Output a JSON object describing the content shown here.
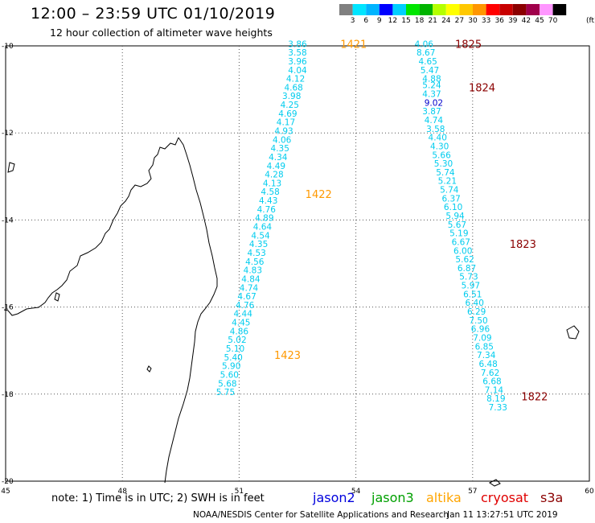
{
  "title": "12:00 – 23:59 UTC 01/10/2019",
  "subtitle": "12 hour collection of altimeter wave heights",
  "colorbar": {
    "unit": "(ft)",
    "labels": [
      "3",
      "6",
      "9",
      "12",
      "15",
      "18",
      "21",
      "24",
      "27",
      "30",
      "33",
      "36",
      "39",
      "42",
      "45",
      "70"
    ],
    "colors": [
      "#808080",
      "#00e5ff",
      "#00b4ff",
      "#0000ff",
      "#00cfff",
      "#00e600",
      "#00b400",
      "#b4ff00",
      "#ffff00",
      "#ffc800",
      "#ff9600",
      "#ff0000",
      "#c80000",
      "#8b0000",
      "#a0004b",
      "#ff96ff",
      "#000000"
    ]
  },
  "axes": {
    "lat_labels": [
      "-10",
      "-12",
      "-14",
      "-16",
      "-18",
      "-20"
    ],
    "lon_labels": [
      "45",
      "48",
      "51",
      "54",
      "57",
      "60"
    ]
  },
  "note": "note:  1) Time is in UTC;  2) SWH is in feet",
  "satellites": [
    {
      "name": "jason2",
      "color": "#0000dd"
    },
    {
      "name": "jason3",
      "color": "#00a000"
    },
    {
      "name": "altika",
      "color": "#ffa500"
    },
    {
      "name": "cryosat",
      "color": "#e00000"
    },
    {
      "name": "s3a",
      "color": "#8b0000"
    }
  ],
  "credit": "NOAA/NESDIS Center for Satellite Applications and Research",
  "timestamp": "Jan 11 13:27:51 UTC 2019",
  "chart_data": {
    "type": "scatter",
    "xlim": [
      45,
      60
    ],
    "ylim": [
      -20,
      -10
    ],
    "tracks": [
      {
        "satellite": "altika",
        "color": "#00ccee",
        "time_labels": [
          {
            "text": "1421",
            "lon": 53.6,
            "lat": -9.95,
            "color": "#ff9900"
          },
          {
            "text": "1422",
            "lon": 52.7,
            "lat": -13.4,
            "color": "#ff9900"
          },
          {
            "text": "1423",
            "lon": 51.9,
            "lat": -17.1,
            "color": "#ff9900"
          }
        ],
        "points": [
          {
            "lon": 52.5,
            "lat": -9.95,
            "v": "3.86"
          },
          {
            "lon": 52.5,
            "lat": -10.15,
            "v": "3.58"
          },
          {
            "lon": 52.5,
            "lat": -10.35,
            "v": "3.96"
          },
          {
            "lon": 52.5,
            "lat": -10.55,
            "v": "4.04"
          },
          {
            "lon": 52.45,
            "lat": -10.75,
            "v": "4.12"
          },
          {
            "lon": 52.4,
            "lat": -10.95,
            "v": "4.68"
          },
          {
            "lon": 52.35,
            "lat": -11.15,
            "v": "3.98"
          },
          {
            "lon": 52.3,
            "lat": -11.35,
            "v": "4.25"
          },
          {
            "lon": 52.25,
            "lat": -11.55,
            "v": "4.69"
          },
          {
            "lon": 52.2,
            "lat": -11.75,
            "v": "4.17"
          },
          {
            "lon": 52.15,
            "lat": -11.95,
            "v": "4.93"
          },
          {
            "lon": 52.1,
            "lat": -12.15,
            "v": "4.06"
          },
          {
            "lon": 52.05,
            "lat": -12.35,
            "v": "4.35"
          },
          {
            "lon": 52.0,
            "lat": -12.55,
            "v": "4.34"
          },
          {
            "lon": 51.95,
            "lat": -12.75,
            "v": "4.49"
          },
          {
            "lon": 51.9,
            "lat": -12.95,
            "v": "4.28"
          },
          {
            "lon": 51.85,
            "lat": -13.15,
            "v": "4.13"
          },
          {
            "lon": 51.8,
            "lat": -13.35,
            "v": "4.58"
          },
          {
            "lon": 51.75,
            "lat": -13.55,
            "v": "4.43"
          },
          {
            "lon": 51.7,
            "lat": -13.75,
            "v": "4.76"
          },
          {
            "lon": 51.65,
            "lat": -13.95,
            "v": "4.89"
          },
          {
            "lon": 51.6,
            "lat": -14.15,
            "v": "4.64"
          },
          {
            "lon": 51.55,
            "lat": -14.35,
            "v": "4.54"
          },
          {
            "lon": 51.5,
            "lat": -14.55,
            "v": "4.35"
          },
          {
            "lon": 51.45,
            "lat": -14.75,
            "v": "4.53"
          },
          {
            "lon": 51.4,
            "lat": -14.95,
            "v": "4.56"
          },
          {
            "lon": 51.35,
            "lat": -15.15,
            "v": "4.83"
          },
          {
            "lon": 51.3,
            "lat": -15.35,
            "v": "4.84"
          },
          {
            "lon": 51.25,
            "lat": -15.55,
            "v": "4.74"
          },
          {
            "lon": 51.2,
            "lat": -15.75,
            "v": "4.67"
          },
          {
            "lon": 51.15,
            "lat": -15.95,
            "v": "4.76"
          },
          {
            "lon": 51.1,
            "lat": -16.15,
            "v": "4.44"
          },
          {
            "lon": 51.05,
            "lat": -16.35,
            "v": "4.45"
          },
          {
            "lon": 51.0,
            "lat": -16.55,
            "v": "4.86"
          },
          {
            "lon": 50.95,
            "lat": -16.75,
            "v": "5.02"
          },
          {
            "lon": 50.9,
            "lat": -16.95,
            "v": "5.10"
          },
          {
            "lon": 50.85,
            "lat": -17.15,
            "v": "5.40"
          },
          {
            "lon": 50.8,
            "lat": -17.35,
            "v": "5.90"
          },
          {
            "lon": 50.75,
            "lat": -17.55,
            "v": "5.60"
          },
          {
            "lon": 50.7,
            "lat": -17.75,
            "v": "5.68"
          },
          {
            "lon": 50.65,
            "lat": -17.95,
            "v": "5.75"
          }
        ]
      },
      {
        "satellite": "cryosat",
        "color": "#00ccee",
        "time_labels": [
          {
            "text": "1825",
            "lon": 56.55,
            "lat": -9.95,
            "color": "#8b0000"
          },
          {
            "text": "1824",
            "lon": 56.9,
            "lat": -10.95,
            "color": "#8b0000"
          },
          {
            "text": "1823",
            "lon": 57.95,
            "lat": -14.55,
            "color": "#8b0000"
          },
          {
            "text": "1822",
            "lon": 58.25,
            "lat": -18.05,
            "color": "#8b0000"
          }
        ],
        "points": [
          {
            "lon": 55.75,
            "lat": -9.95,
            "v": "4.06"
          },
          {
            "lon": 55.8,
            "lat": -10.15,
            "v": "8.67"
          },
          {
            "lon": 55.85,
            "lat": -10.35,
            "v": "4.65"
          },
          {
            "lon": 55.9,
            "lat": -10.55,
            "v": "5.47"
          },
          {
            "lon": 55.95,
            "lat": -10.75,
            "v": "4.88"
          },
          {
            "lon": 55.95,
            "lat": -10.9,
            "v": "5.24"
          },
          {
            "lon": 55.95,
            "lat": -11.1,
            "v": "4.37"
          },
          {
            "lon": 56.0,
            "lat": -11.3,
            "v": "9.02",
            "color": "#0000cc"
          },
          {
            "lon": 55.95,
            "lat": -11.5,
            "v": "3.87"
          },
          {
            "lon": 56.0,
            "lat": -11.7,
            "v": "4.74"
          },
          {
            "lon": 56.05,
            "lat": -11.9,
            "v": "3.58"
          },
          {
            "lon": 56.1,
            "lat": -12.1,
            "v": "4.40"
          },
          {
            "lon": 56.15,
            "lat": -12.3,
            "v": "4.30"
          },
          {
            "lon": 56.2,
            "lat": -12.5,
            "v": "5.66"
          },
          {
            "lon": 56.25,
            "lat": -12.7,
            "v": "5.30"
          },
          {
            "lon": 56.3,
            "lat": -12.9,
            "v": "5.74"
          },
          {
            "lon": 56.35,
            "lat": -13.1,
            "v": "5.21"
          },
          {
            "lon": 56.4,
            "lat": -13.3,
            "v": "5.74"
          },
          {
            "lon": 56.45,
            "lat": -13.5,
            "v": "6.37"
          },
          {
            "lon": 56.5,
            "lat": -13.7,
            "v": "6.10"
          },
          {
            "lon": 56.55,
            "lat": -13.9,
            "v": "5.94"
          },
          {
            "lon": 56.6,
            "lat": -14.1,
            "v": "5.67"
          },
          {
            "lon": 56.65,
            "lat": -14.3,
            "v": "5.19"
          },
          {
            "lon": 56.7,
            "lat": -14.5,
            "v": "6.67"
          },
          {
            "lon": 56.75,
            "lat": -14.7,
            "v": "6.00"
          },
          {
            "lon": 56.8,
            "lat": -14.9,
            "v": "5.62"
          },
          {
            "lon": 56.85,
            "lat": -15.1,
            "v": "6.87"
          },
          {
            "lon": 56.9,
            "lat": -15.3,
            "v": "5.73"
          },
          {
            "lon": 56.95,
            "lat": -15.5,
            "v": "5.97"
          },
          {
            "lon": 57.0,
            "lat": -15.7,
            "v": "6.51"
          },
          {
            "lon": 57.05,
            "lat": -15.9,
            "v": "6.40"
          },
          {
            "lon": 57.1,
            "lat": -16.1,
            "v": "6.29"
          },
          {
            "lon": 57.15,
            "lat": -16.3,
            "v": "7.50"
          },
          {
            "lon": 57.2,
            "lat": -16.5,
            "v": "6.96"
          },
          {
            "lon": 57.25,
            "lat": -16.7,
            "v": "7.09"
          },
          {
            "lon": 57.3,
            "lat": -16.9,
            "v": "6.85"
          },
          {
            "lon": 57.35,
            "lat": -17.1,
            "v": "7.34"
          },
          {
            "lon": 57.4,
            "lat": -17.3,
            "v": "6.48"
          },
          {
            "lon": 57.45,
            "lat": -17.5,
            "v": "7.62"
          },
          {
            "lon": 57.5,
            "lat": -17.7,
            "v": "6.68"
          },
          {
            "lon": 57.55,
            "lat": -17.9,
            "v": "7.14"
          },
          {
            "lon": 57.6,
            "lat": -18.1,
            "v": "8.19"
          },
          {
            "lon": 57.65,
            "lat": -18.3,
            "v": "7.33"
          }
        ]
      }
    ]
  }
}
